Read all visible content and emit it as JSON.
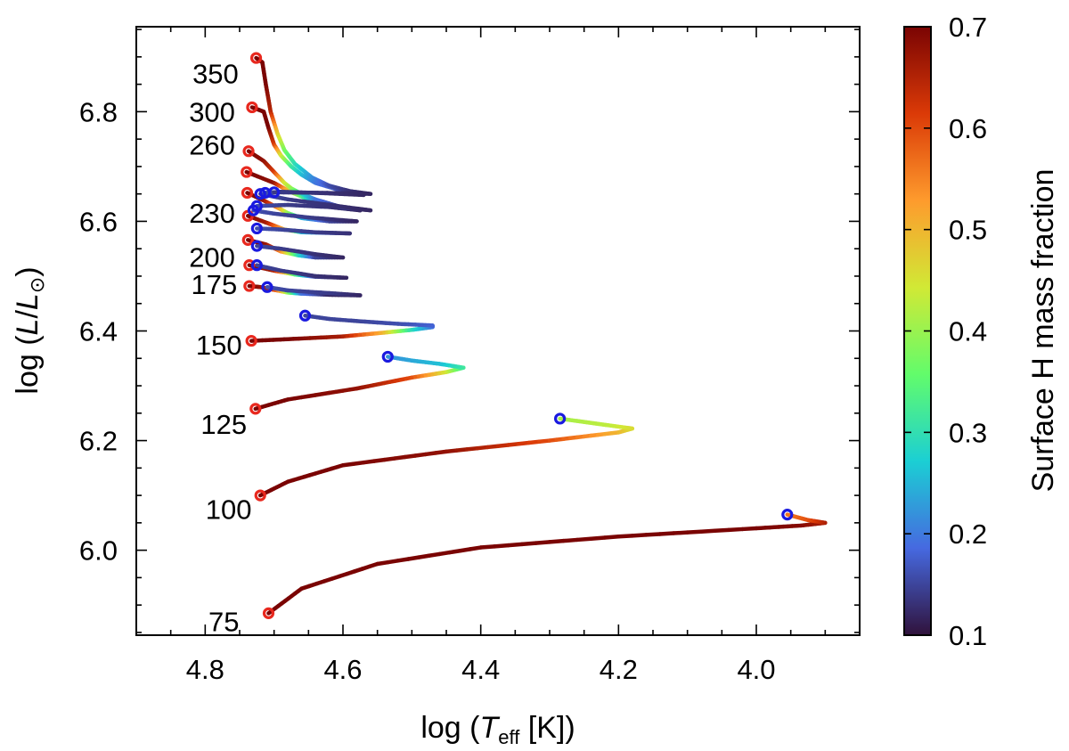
{
  "chart_data": {
    "type": "line",
    "title": "",
    "xlabel": {
      "prefix": "log (",
      "main": "T",
      "sub": "eff",
      "suffix": " [K])"
    },
    "ylabel": {
      "prefix": "log (",
      "num": "L",
      "slash": "/",
      "den": "L",
      "sub": "⊙",
      "suffix": ")"
    },
    "xlim": [
      4.9,
      3.85
    ],
    "ylim": [
      5.845,
      6.955
    ],
    "x_reversed": true,
    "x_ticks": [
      4.8,
      4.6,
      4.4,
      4.2,
      4.0
    ],
    "x_tick_labels": [
      "4.8",
      "4.6",
      "4.4",
      "4.2",
      "4.0"
    ],
    "y_ticks": [
      6.0,
      6.2,
      6.4,
      6.6,
      6.8
    ],
    "y_tick_labels": [
      "6.0",
      "6.2",
      "6.4",
      "6.6",
      "6.8"
    ],
    "grid": false,
    "colorbar": {
      "label": "Surface H mass fraction",
      "min": 0.1,
      "max": 0.7,
      "ticks": [
        0.1,
        0.2,
        0.3,
        0.4,
        0.5,
        0.6,
        0.7
      ],
      "tick_labels": [
        "0.1",
        "0.2",
        "0.3",
        "0.4",
        "0.5",
        "0.6",
        "0.7"
      ],
      "colormap": [
        "#30123b",
        "#4669e0",
        "#1bcfd4",
        "#62fc6b",
        "#d1e935",
        "#fe9b2d",
        "#db3a07",
        "#7a0403"
      ]
    },
    "start_marker_color": "#e8281e",
    "end_marker_color": "#1a1adf",
    "series": [
      {
        "label": "75",
        "label_pos": [
          4.773,
          5.87
        ],
        "points": [
          [
            4.708,
            5.885,
            0.7
          ],
          [
            4.66,
            5.93,
            0.7
          ],
          [
            4.55,
            5.975,
            0.7
          ],
          [
            4.4,
            6.005,
            0.7
          ],
          [
            4.2,
            6.025,
            0.7
          ],
          [
            4.0,
            6.04,
            0.7
          ],
          [
            3.935,
            6.045,
            0.69
          ],
          [
            3.9,
            6.05,
            0.66
          ],
          [
            3.925,
            6.055,
            0.6
          ],
          [
            3.955,
            6.065,
            0.56
          ]
        ]
      },
      {
        "label": "100",
        "label_pos": [
          4.766,
          6.075
        ],
        "points": [
          [
            4.72,
            6.1,
            0.7
          ],
          [
            4.68,
            6.125,
            0.7
          ],
          [
            4.6,
            6.155,
            0.7
          ],
          [
            4.45,
            6.18,
            0.68
          ],
          [
            4.3,
            6.2,
            0.6
          ],
          [
            4.2,
            6.215,
            0.5
          ],
          [
            4.18,
            6.222,
            0.46
          ],
          [
            4.215,
            6.228,
            0.43
          ],
          [
            4.25,
            6.234,
            0.42
          ],
          [
            4.285,
            6.24,
            0.41
          ]
        ]
      },
      {
        "label": "125",
        "label_pos": [
          4.773,
          6.23
        ],
        "points": [
          [
            4.727,
            6.258,
            0.7
          ],
          [
            4.68,
            6.275,
            0.7
          ],
          [
            4.58,
            6.295,
            0.68
          ],
          [
            4.5,
            6.315,
            0.6
          ],
          [
            4.45,
            6.325,
            0.45
          ],
          [
            4.425,
            6.333,
            0.32
          ],
          [
            4.46,
            6.34,
            0.26
          ],
          [
            4.5,
            6.346,
            0.24
          ],
          [
            4.535,
            6.353,
            0.22
          ]
        ]
      },
      {
        "label": "150",
        "label_pos": [
          4.78,
          6.375
        ],
        "points": [
          [
            4.733,
            6.382,
            0.7
          ],
          [
            4.68,
            6.385,
            0.7
          ],
          [
            4.6,
            6.39,
            0.66
          ],
          [
            4.54,
            6.397,
            0.5
          ],
          [
            4.5,
            6.402,
            0.3
          ],
          [
            4.47,
            6.407,
            0.2
          ],
          [
            4.47,
            6.41,
            0.18
          ],
          [
            4.52,
            6.413,
            0.16
          ],
          [
            4.58,
            6.418,
            0.15
          ],
          [
            4.62,
            6.422,
            0.15
          ],
          [
            4.655,
            6.428,
            0.15
          ]
        ]
      },
      {
        "label": "175",
        "label_pos": [
          4.787,
          6.485
        ],
        "points": [
          [
            4.736,
            6.482,
            0.7
          ],
          [
            4.72,
            6.48,
            0.68
          ],
          [
            4.7,
            6.475,
            0.62
          ],
          [
            4.68,
            6.47,
            0.4
          ],
          [
            4.66,
            6.468,
            0.2
          ],
          [
            4.62,
            6.466,
            0.12
          ],
          [
            4.575,
            6.465,
            0.12
          ],
          [
            4.62,
            6.469,
            0.14
          ],
          [
            4.68,
            6.474,
            0.15
          ],
          [
            4.71,
            6.48,
            0.16
          ]
        ]
      },
      {
        "label": "",
        "label_pos": null,
        "points": [
          [
            4.736,
            6.52,
            0.7
          ],
          [
            4.7,
            6.51,
            0.66
          ],
          [
            4.67,
            6.503,
            0.35
          ],
          [
            4.64,
            6.499,
            0.15
          ],
          [
            4.595,
            6.497,
            0.12
          ],
          [
            4.64,
            6.5,
            0.13
          ],
          [
            4.69,
            6.51,
            0.14
          ],
          [
            4.725,
            6.52,
            0.15
          ]
        ]
      },
      {
        "label": "200",
        "label_pos": [
          4.79,
          6.535
        ],
        "points": [
          [
            4.738,
            6.566,
            0.7
          ],
          [
            4.712,
            6.558,
            0.68
          ],
          [
            4.69,
            6.545,
            0.55
          ],
          [
            4.665,
            6.538,
            0.3
          ],
          [
            4.64,
            6.534,
            0.15
          ],
          [
            4.6,
            6.534,
            0.12
          ],
          [
            4.64,
            6.54,
            0.13
          ],
          [
            4.69,
            6.55,
            0.14
          ],
          [
            4.725,
            6.555,
            0.15
          ]
        ]
      },
      {
        "label": "",
        "label_pos": null,
        "points": [
          [
            4.738,
            6.61,
            0.7
          ],
          [
            4.71,
            6.597,
            0.66
          ],
          [
            4.685,
            6.585,
            0.5
          ],
          [
            4.66,
            6.58,
            0.25
          ],
          [
            4.59,
            6.578,
            0.13
          ],
          [
            4.64,
            6.58,
            0.14
          ],
          [
            4.69,
            6.585,
            0.15
          ],
          [
            4.725,
            6.587,
            0.16
          ]
        ]
      },
      {
        "label": "230",
        "label_pos": [
          4.79,
          6.615
        ],
        "points": [
          [
            4.739,
            6.652,
            0.7
          ],
          [
            4.715,
            6.638,
            0.68
          ],
          [
            4.695,
            6.625,
            0.55
          ],
          [
            4.68,
            6.615,
            0.4
          ],
          [
            4.66,
            6.606,
            0.25
          ],
          [
            4.62,
            6.6,
            0.15
          ],
          [
            4.58,
            6.6,
            0.12
          ],
          [
            4.65,
            6.607,
            0.14
          ],
          [
            4.7,
            6.614,
            0.15
          ],
          [
            4.73,
            6.62,
            0.16
          ]
        ]
      },
      {
        "label": "",
        "label_pos": null,
        "points": [
          [
            4.74,
            6.69,
            0.7
          ],
          [
            4.7,
            6.67,
            0.68
          ],
          [
            4.675,
            6.653,
            0.45
          ],
          [
            4.64,
            6.635,
            0.2
          ],
          [
            4.6,
            6.625,
            0.13
          ],
          [
            4.575,
            6.62,
            0.12
          ],
          [
            4.62,
            6.626,
            0.13
          ],
          [
            4.68,
            6.63,
            0.14
          ],
          [
            4.725,
            6.628,
            0.16
          ]
        ]
      },
      {
        "label": "260",
        "label_pos": [
          4.79,
          6.74
        ],
        "points": [
          [
            4.737,
            6.728,
            0.7
          ],
          [
            4.715,
            6.71,
            0.68
          ],
          [
            4.7,
            6.69,
            0.62
          ],
          [
            4.685,
            6.67,
            0.45
          ],
          [
            4.675,
            6.66,
            0.4
          ],
          [
            4.66,
            6.65,
            0.3
          ],
          [
            4.64,
            6.64,
            0.2
          ],
          [
            4.6,
            6.625,
            0.14
          ],
          [
            4.56,
            6.62,
            0.12
          ],
          [
            4.62,
            6.63,
            0.13
          ],
          [
            4.68,
            6.64,
            0.14
          ],
          [
            4.72,
            6.65,
            0.16
          ]
        ]
      },
      {
        "label": "300",
        "label_pos": [
          4.79,
          6.8
        ],
        "points": [
          [
            4.732,
            6.808,
            0.7
          ],
          [
            4.715,
            6.8,
            0.7
          ],
          [
            4.708,
            6.77,
            0.7
          ],
          [
            4.7,
            6.74,
            0.62
          ],
          [
            4.69,
            6.72,
            0.45
          ],
          [
            4.675,
            6.7,
            0.32
          ],
          [
            4.66,
            6.685,
            0.26
          ],
          [
            4.64,
            6.67,
            0.2
          ],
          [
            4.6,
            6.655,
            0.15
          ],
          [
            4.57,
            6.648,
            0.12
          ],
          [
            4.64,
            6.652,
            0.13
          ],
          [
            4.69,
            6.654,
            0.14
          ],
          [
            4.713,
            6.652,
            0.16
          ]
        ]
      },
      {
        "label": "350",
        "label_pos": [
          4.785,
          6.87
        ],
        "points": [
          [
            4.726,
            6.898,
            0.7
          ],
          [
            4.717,
            6.89,
            0.7
          ],
          [
            4.712,
            6.85,
            0.7
          ],
          [
            4.705,
            6.8,
            0.65
          ],
          [
            4.695,
            6.76,
            0.48
          ],
          [
            4.685,
            6.73,
            0.38
          ],
          [
            4.67,
            6.705,
            0.3
          ],
          [
            4.645,
            6.68,
            0.22
          ],
          [
            4.62,
            6.665,
            0.16
          ],
          [
            4.59,
            6.655,
            0.13
          ],
          [
            4.56,
            6.65,
            0.12
          ],
          [
            4.63,
            6.652,
            0.13
          ],
          [
            4.7,
            6.653,
            0.14
          ]
        ]
      }
    ]
  }
}
